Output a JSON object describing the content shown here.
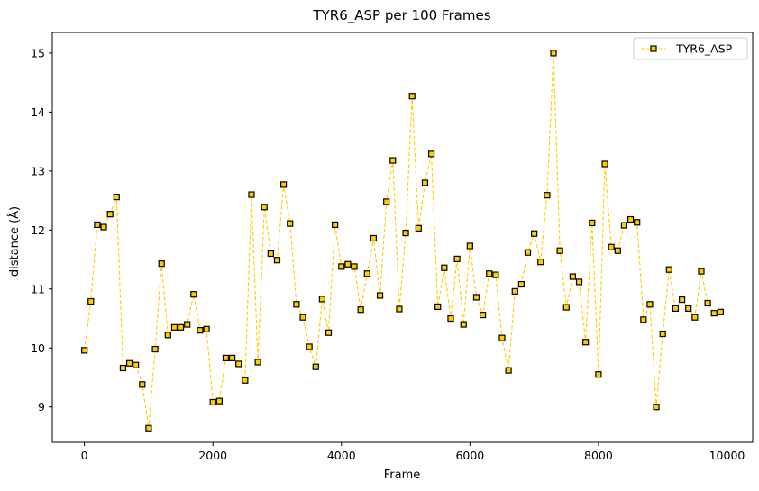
{
  "chart_data": {
    "type": "line",
    "title": "TYR6_ASP per 100 Frames",
    "xlabel": "Frame",
    "ylabel": "distance (Å)",
    "xlim": [
      -500,
      10400
    ],
    "ylim": [
      8.4,
      15.35
    ],
    "xticks": [
      0,
      2000,
      4000,
      6000,
      8000,
      10000
    ],
    "yticks": [
      9,
      10,
      11,
      12,
      13,
      14,
      15
    ],
    "grid": false,
    "legend": {
      "position": "top-right",
      "entries": [
        "TYR6_ASP"
      ]
    },
    "series": [
      {
        "name": "TYR6_ASP",
        "line_color": "#ffcc00",
        "line_style": "dashed",
        "marker": "square",
        "marker_edge": "#000000",
        "x": [
          0,
          100,
          200,
          300,
          400,
          500,
          600,
          700,
          800,
          900,
          1000,
          1100,
          1200,
          1300,
          1400,
          1500,
          1600,
          1700,
          1800,
          1900,
          2000,
          2100,
          2200,
          2300,
          2400,
          2500,
          2600,
          2700,
          2800,
          2900,
          3000,
          3100,
          3200,
          3300,
          3400,
          3500,
          3600,
          3700,
          3800,
          3900,
          4000,
          4100,
          4200,
          4300,
          4400,
          4500,
          4600,
          4700,
          4800,
          4900,
          5000,
          5100,
          5200,
          5300,
          5400,
          5500,
          5600,
          5700,
          5800,
          5900,
          6000,
          6100,
          6200,
          6300,
          6400,
          6500,
          6600,
          6700,
          6800,
          6900,
          7000,
          7100,
          7200,
          7300,
          7400,
          7500,
          7600,
          7700,
          7800,
          7900,
          8000,
          8100,
          8200,
          8300,
          8400,
          8500,
          8600,
          8700,
          8800,
          8900,
          9000,
          9100,
          9200,
          9300,
          9400,
          9500,
          9600,
          9700,
          9800,
          9900
        ],
        "values": [
          9.96,
          10.79,
          12.09,
          12.05,
          12.27,
          12.56,
          9.66,
          9.74,
          9.71,
          9.38,
          8.64,
          9.98,
          11.43,
          10.22,
          10.35,
          10.35,
          10.4,
          10.91,
          10.3,
          10.32,
          9.08,
          9.1,
          9.83,
          9.83,
          9.73,
          9.45,
          12.6,
          9.76,
          12.39,
          11.6,
          11.49,
          12.77,
          12.11,
          10.74,
          10.52,
          10.02,
          9.68,
          10.83,
          10.26,
          12.09,
          11.38,
          11.42,
          11.38,
          10.65,
          11.26,
          11.86,
          10.89,
          12.48,
          13.18,
          10.66,
          11.95,
          14.27,
          12.03,
          12.8,
          13.29,
          10.7,
          11.36,
          10.5,
          11.51,
          10.4,
          11.73,
          10.86,
          10.56,
          11.26,
          11.24,
          10.17,
          9.62,
          10.96,
          11.08,
          11.62,
          11.94,
          11.46,
          12.59,
          15.0,
          11.65,
          10.69,
          11.21,
          11.12,
          10.1,
          12.12,
          9.55,
          13.12,
          11.71,
          11.65,
          12.08,
          12.18,
          12.13,
          10.48,
          10.74,
          9.0,
          10.24,
          11.33,
          10.67,
          10.82,
          10.67,
          10.52,
          11.3,
          10.76,
          10.59,
          10.61
        ]
      }
    ]
  }
}
